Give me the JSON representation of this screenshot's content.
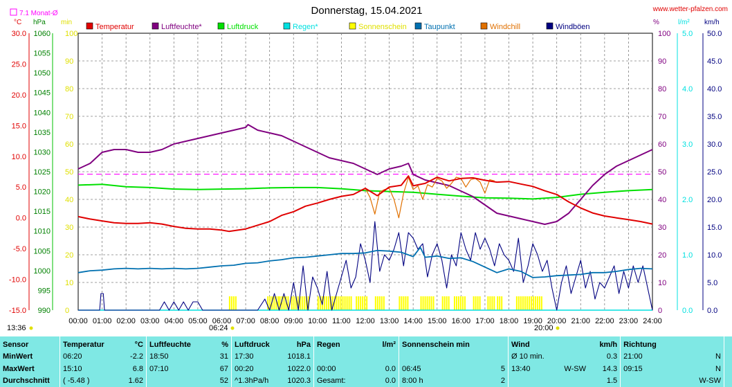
{
  "chart_data": {
    "type": "line",
    "title": "Donnerstag, 15.04.2021",
    "site": "www.wetter-pfalzen.com",
    "monthly_avg_label": "7.1 Monat-Ø",
    "colors": {
      "temperature": "#e00000",
      "humidity": "#800080",
      "pressure": "#00e000",
      "rain": "#00e0e0",
      "sunshine": "#ffff00",
      "dewpoint": "#0070b0",
      "windchill": "#e07000",
      "gusts": "#000080",
      "monthly_avg": "#ff00ff",
      "grid": "#808080",
      "plot_bg": "#ffffff",
      "sunshine_axis": "#e0e000"
    },
    "legend": [
      {
        "key": "temperature",
        "label": "Temperatur"
      },
      {
        "key": "humidity",
        "label": "Luftfeuchte*"
      },
      {
        "key": "pressure",
        "label": "Luftdruck"
      },
      {
        "key": "rain",
        "label": "Regen*"
      },
      {
        "key": "sunshine",
        "label": "Sonnenschein"
      },
      {
        "key": "dewpoint",
        "label": "Taupunkt"
      },
      {
        "key": "windchill",
        "label": "Windchill"
      },
      {
        "key": "gusts",
        "label": "Windböen"
      }
    ],
    "axes": {
      "temperature": {
        "unit": "°C",
        "min": -15,
        "max": 30,
        "ticks": [
          "30.0",
          "25.0",
          "20.0",
          "15.0",
          "10.0",
          "5.0",
          "0.0",
          "-5.0",
          "-10.0",
          "-15.0"
        ]
      },
      "pressure": {
        "unit": "hPa",
        "min": 990,
        "max": 1060,
        "ticks": [
          "1060",
          "1055",
          "1050",
          "1045",
          "1040",
          "1035",
          "1030",
          "1025",
          "1020",
          "1015",
          "1010",
          "1005",
          "1000",
          "995",
          "990"
        ]
      },
      "sunshine": {
        "unit": "min",
        "min": 0,
        "max": 100,
        "ticks": [
          "100",
          "90",
          "80",
          "70",
          "60",
          "50",
          "40",
          "30",
          "20",
          "10",
          "0"
        ]
      },
      "humidity": {
        "unit": "%",
        "min": 0,
        "max": 100,
        "ticks": [
          "100",
          "90",
          "80",
          "70",
          "60",
          "50",
          "40",
          "30",
          "20",
          "10",
          "0"
        ]
      },
      "rain": {
        "unit": "l/m²",
        "min": 0,
        "max": 5,
        "ticks": [
          "5.0",
          "4.0",
          "3.0",
          "2.0",
          "1.0",
          "0.0"
        ]
      },
      "wind": {
        "unit": "km/h",
        "min": 0,
        "max": 50,
        "ticks": [
          "50.0",
          "45.0",
          "40.0",
          "35.0",
          "30.0",
          "25.0",
          "20.0",
          "15.0",
          "10.0",
          "5.0",
          "0.0"
        ]
      }
    },
    "x_ticks": [
      "00:00",
      "01:00",
      "02:00",
      "03:00",
      "04:00",
      "05:00",
      "06:00",
      "07:00",
      "08:00",
      "09:00",
      "10:00",
      "11:00",
      "12:00",
      "13:00",
      "14:00",
      "15:00",
      "16:00",
      "17:00",
      "18:00",
      "19:00",
      "20:00",
      "21:00",
      "22:00",
      "23:00",
      "24:00"
    ],
    "time_labels": {
      "current": "13:36",
      "sunrise": "06:24",
      "sunset": "20:00"
    },
    "monthly_avg_temp": 7.1,
    "series": {
      "temperature": {
        "hours": [
          0,
          0.5,
          1,
          1.5,
          2,
          2.5,
          3,
          3.5,
          4,
          4.5,
          5,
          5.5,
          6,
          6.3,
          6.5,
          7,
          7.5,
          8,
          8.5,
          9,
          9.5,
          10,
          10.5,
          11,
          11.5,
          12,
          12.5,
          13,
          13.5,
          13.8,
          14,
          14.5,
          15,
          15.5,
          16,
          16.5,
          17,
          17.5,
          18,
          18.5,
          19,
          19.5,
          20,
          20.5,
          21,
          21.5,
          22,
          22.5,
          23,
          23.5,
          24
        ],
        "values": [
          0.2,
          -0.2,
          -0.5,
          -0.8,
          -0.9,
          -0.9,
          -0.8,
          -1.0,
          -1.4,
          -1.7,
          -1.8,
          -1.8,
          -2.0,
          -2.2,
          -2.1,
          -1.8,
          -1.2,
          -0.6,
          0.4,
          1.0,
          1.9,
          2.4,
          3.0,
          3.5,
          3.8,
          4.8,
          3.6,
          5.0,
          5.3,
          6.8,
          5.2,
          5.6,
          6.6,
          6.0,
          6.4,
          6.5,
          6.1,
          5.8,
          5.9,
          5.5,
          5.1,
          4.4,
          3.8,
          2.6,
          1.6,
          0.8,
          0.3,
          0.0,
          -0.3,
          -0.6,
          -1.0
        ]
      },
      "windchill": {
        "hours": [
          11.8,
          12,
          12.2,
          12.4,
          12.6,
          12.8,
          13,
          13.2,
          13.4,
          13.6,
          13.8,
          14,
          14.2,
          14.4,
          14.6,
          14.8,
          15,
          15.2,
          15.4,
          15.6,
          15.8,
          16,
          16.2,
          16.4,
          16.6,
          16.8,
          17,
          17.2,
          17.4
        ],
        "values": [
          4.5,
          4.8,
          3.3,
          0.6,
          4.2,
          4.6,
          4.8,
          3.0,
          0.0,
          4.0,
          6.6,
          4.6,
          5.2,
          3.0,
          5.4,
          5.0,
          6.4,
          6.0,
          4.8,
          5.6,
          6.6,
          6.4,
          5.0,
          6.2,
          6.4,
          5.8,
          4.0,
          6.2,
          6.0
        ]
      },
      "humidity": {
        "hours": [
          0,
          0.5,
          1,
          1.5,
          2,
          2.5,
          3,
          3.5,
          4,
          4.5,
          5,
          5.5,
          6,
          6.5,
          7,
          7.1,
          7.5,
          8,
          8.5,
          9,
          9.5,
          10,
          10.5,
          11,
          11.5,
          12,
          12.5,
          13,
          13.5,
          13.8,
          14,
          14.5,
          15,
          15.5,
          16,
          16.5,
          17,
          17.5,
          18,
          18.5,
          19,
          19.5,
          20,
          20.5,
          21,
          21.5,
          22,
          22.5,
          23,
          23.5,
          24
        ],
        "values": [
          51,
          53,
          57,
          58,
          58,
          57,
          57,
          58,
          60,
          61,
          62,
          63,
          64,
          65,
          66,
          67,
          65,
          64,
          63,
          61,
          59,
          57,
          55,
          54,
          53,
          51,
          49,
          51,
          52,
          53,
          49,
          47,
          46,
          45,
          43,
          41,
          38,
          35,
          34,
          33,
          32,
          31,
          32,
          35,
          40,
          45,
          49,
          52,
          54,
          56,
          58
        ]
      },
      "pressure": {
        "hours": [
          0,
          1,
          2,
          3,
          4,
          5,
          6,
          7,
          8,
          9,
          10,
          11,
          12,
          13,
          14,
          15,
          16,
          17,
          18,
          19,
          20,
          21,
          22,
          23,
          24
        ],
        "values": [
          1021.6,
          1021.8,
          1021.2,
          1021.0,
          1020.6,
          1020.5,
          1020.6,
          1020.7,
          1020.9,
          1021.0,
          1021.0,
          1020.7,
          1020.2,
          1020.0,
          1019.8,
          1019.3,
          1018.8,
          1018.4,
          1018.3,
          1018.1,
          1018.5,
          1019.3,
          1019.8,
          1020.2,
          1020.5
        ]
      },
      "dewpoint": {
        "hours": [
          0,
          0.5,
          1,
          1.5,
          2,
          2.5,
          3,
          3.5,
          4,
          4.5,
          5,
          5.5,
          6,
          6.5,
          7,
          7.5,
          8,
          8.5,
          9,
          9.5,
          10,
          10.5,
          11,
          11.5,
          12,
          12.5,
          13,
          13.5,
          14,
          14.3,
          14.5,
          15,
          15.5,
          16,
          16.5,
          17,
          17.5,
          18,
          18.5,
          19,
          19.5,
          20,
          20.5,
          21,
          21.5,
          22,
          22.5,
          23,
          23.5,
          24
        ],
        "values": [
          -8.9,
          -8.6,
          -8.5,
          -8.3,
          -8.2,
          -8.3,
          -8.2,
          -8.3,
          -8.2,
          -8.3,
          -8.2,
          -8.0,
          -7.8,
          -7.7,
          -7.4,
          -7.3,
          -7.0,
          -6.8,
          -6.5,
          -6.4,
          -6.2,
          -6.0,
          -5.8,
          -5.8,
          -5.7,
          -5.3,
          -5.4,
          -5.6,
          -6.3,
          -4.8,
          -6.4,
          -6.2,
          -6.6,
          -6.5,
          -7.1,
          -8.0,
          -8.9,
          -8.3,
          -8.7,
          -9.7,
          -9.6,
          -9.4,
          -9.3,
          -9.2,
          -8.9,
          -8.9,
          -8.7,
          -8.4,
          -8.2,
          -8.3
        ]
      },
      "gusts": {
        "hours": [
          0,
          0.9,
          0.95,
          1.05,
          1.1,
          3.4,
          3.6,
          3.8,
          4,
          4.2,
          4.4,
          4.6,
          4.8,
          5,
          5.2,
          5.4,
          7.5,
          7.8,
          8,
          8.2,
          8.4,
          8.6,
          8.8,
          9,
          9.2,
          9.4,
          9.6,
          9.8,
          10,
          10.2,
          10.4,
          10.6,
          10.8,
          11,
          11.2,
          11.4,
          11.6,
          11.8,
          12,
          12.2,
          12.4,
          12.6,
          12.8,
          13,
          13.2,
          13.4,
          13.6,
          13.8,
          14,
          14.2,
          14.4,
          14.6,
          14.8,
          15,
          15.2,
          15.4,
          15.6,
          15.8,
          16,
          16.2,
          16.4,
          16.6,
          16.8,
          17,
          17.2,
          17.4,
          17.6,
          17.8,
          18,
          18.2,
          18.4,
          18.6,
          18.8,
          19,
          19.2,
          19.4,
          19.6,
          19.8,
          20,
          20.2,
          20.4,
          20.6,
          20.8,
          21,
          21.2,
          21.4,
          21.6,
          21.8,
          22,
          22.2,
          22.4,
          22.6,
          22.8,
          23,
          23.2,
          23.4,
          23.6,
          23.8,
          24
        ],
        "values": [
          0,
          0,
          3,
          3,
          0,
          0,
          1.5,
          0,
          1.5,
          0,
          1.5,
          0,
          1.5,
          1.5,
          0,
          0,
          0,
          2,
          0,
          3,
          0,
          3,
          0,
          5,
          0,
          8,
          0,
          6,
          4,
          1,
          7,
          0,
          3,
          6,
          9,
          4,
          6,
          12,
          9,
          5,
          16,
          7,
          10,
          9,
          11,
          14,
          8,
          14,
          13,
          11,
          12,
          6,
          10,
          12,
          9,
          4,
          10,
          8,
          14,
          11,
          9,
          14,
          11,
          13,
          11,
          8,
          12,
          10,
          9,
          7,
          13,
          5,
          8,
          12,
          10,
          7,
          9,
          4,
          0,
          5,
          8,
          3,
          6,
          9,
          4,
          7,
          2,
          5,
          4,
          6,
          8,
          3,
          7,
          4,
          8,
          5,
          8,
          4,
          0
        ]
      },
      "sunshine_blocks": [
        [
          6.3,
          6.6
        ],
        [
          7.9,
          8.4
        ],
        [
          8.4,
          8.8
        ],
        [
          8.9,
          9.6
        ],
        [
          10.0,
          10.6
        ],
        [
          10.6,
          11.4
        ],
        [
          11.6,
          12.1
        ],
        [
          12.4,
          12.8
        ],
        [
          13.4,
          13.8
        ],
        [
          14.3,
          14.9
        ],
        [
          15.2,
          15.5
        ],
        [
          15.7,
          16.2
        ],
        [
          16.5,
          16.8
        ],
        [
          17.1,
          17.4
        ],
        [
          17.5,
          17.7
        ],
        [
          18.3,
          19.4
        ]
      ],
      "rain": {
        "hours": [
          0,
          24
        ],
        "values": [
          0,
          0
        ]
      }
    }
  },
  "stats": {
    "headers": {
      "sensor": "Sensor",
      "temperature": "Temperatur",
      "temp_unit": "°C",
      "humidity": "Luftfeuchte",
      "hum_unit": "%",
      "pressure": "Luftdruck",
      "press_unit": "hPa",
      "rain": "Regen",
      "rain_unit": "l/m²",
      "sun": "Sonnenschein min",
      "wind": "Wind",
      "wind_unit": "km/h",
      "direction": "Richtung"
    },
    "min": {
      "label": "MinWert",
      "temp_time": "06:20",
      "temp_val": "-2.2",
      "hum_time": "18:50",
      "hum_val": "31",
      "press_time": "17:30",
      "press_val": "1018.1",
      "rain_time": "",
      "rain_val": "",
      "sun_time": "",
      "sun_val": "",
      "wind_time": "Ø 10 min.",
      "wind_dir": "",
      "wind_val": "0.3",
      "dir_time": "21:00",
      "dir_val": "N"
    },
    "max": {
      "label": "MaxWert",
      "temp_time": "15:10",
      "temp_val": "6.8",
      "hum_time": "07:10",
      "hum_val": "67",
      "press_time": "00:20",
      "press_val": "1022.0",
      "rain_time": "00:00",
      "rain_val": "0.0",
      "sun_time": "06:45",
      "sun_val": "5",
      "wind_time": "13:40",
      "wind_dir": "W-SW",
      "wind_val": "14.3",
      "dir_time": "09:15",
      "dir_val": "N"
    },
    "avg": {
      "label": "Durchschnitt",
      "temp_time": "( -5.48 )",
      "temp_val": "1.62",
      "hum_time": "",
      "hum_val": "52",
      "press_time": "^1.3hPa/h",
      "press_val": "1020.3",
      "rain_time": "Gesamt:",
      "rain_val": "0.0",
      "sun_time": "8:00 h",
      "sun_val": "2",
      "wind_time": "",
      "wind_dir": "",
      "wind_val": "1.5",
      "dir_time": "",
      "dir_val": "W-SW"
    }
  }
}
